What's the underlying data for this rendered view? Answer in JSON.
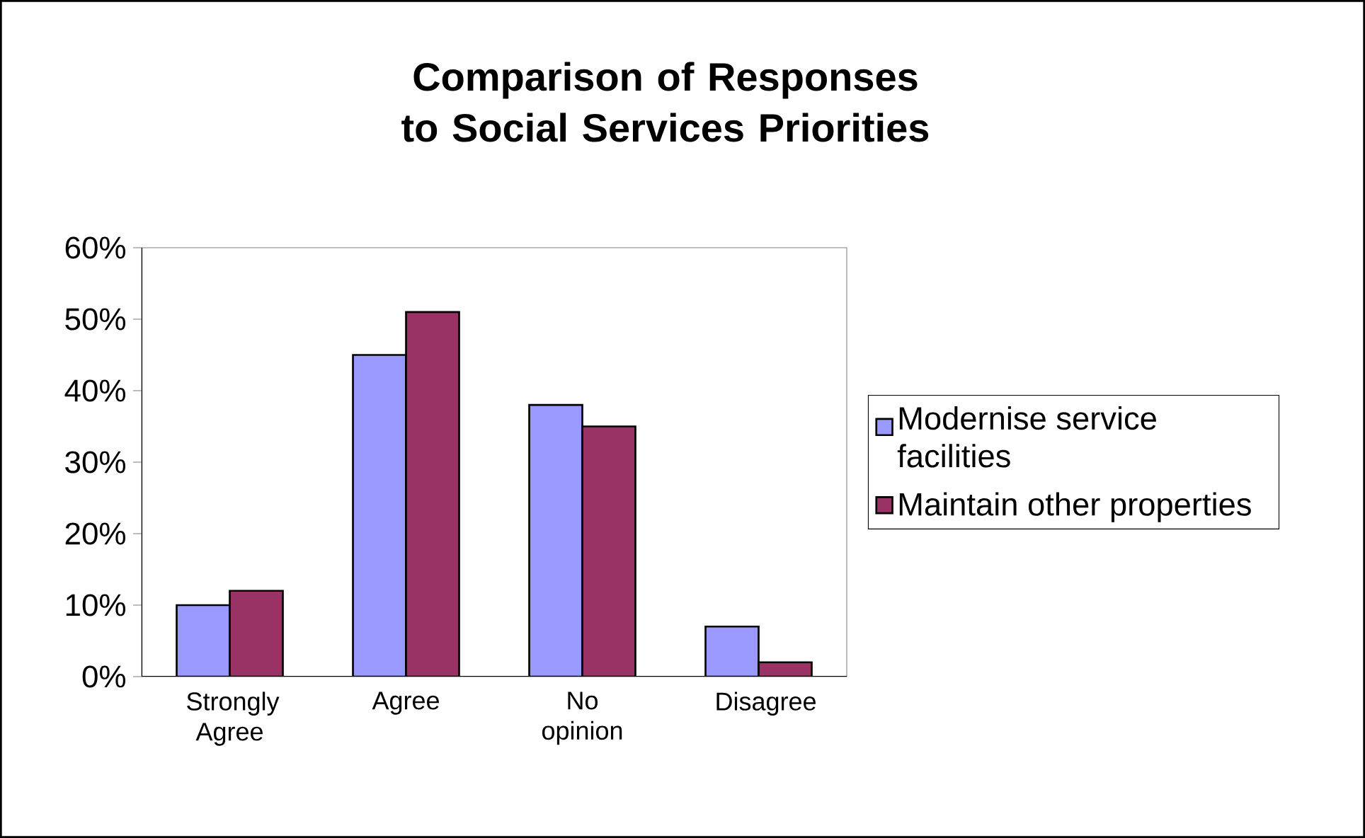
{
  "chart_data": {
    "type": "bar",
    "title": "Comparison of Responses to Social Services Priorities",
    "categories": [
      "Strongly Agree",
      "Agree",
      "No opinion",
      "Disagree"
    ],
    "series": [
      {
        "name": "Modernise service facilities",
        "color": "#9999ff",
        "values": [
          10,
          45,
          38,
          7
        ]
      },
      {
        "name": "Maintain other properties",
        "color": "#993366",
        "values": [
          12,
          51,
          35,
          2
        ]
      }
    ],
    "ylim": [
      0,
      60
    ],
    "yticks": [
      {
        "value": 0,
        "label": "0%"
      },
      {
        "value": 10,
        "label": "10%"
      },
      {
        "value": 20,
        "label": "20%"
      },
      {
        "value": 30,
        "label": "30%"
      },
      {
        "value": 40,
        "label": "40%"
      },
      {
        "value": 50,
        "label": "50%"
      },
      {
        "value": 60,
        "label": "60%"
      }
    ],
    "grid": false,
    "legend": "right"
  }
}
